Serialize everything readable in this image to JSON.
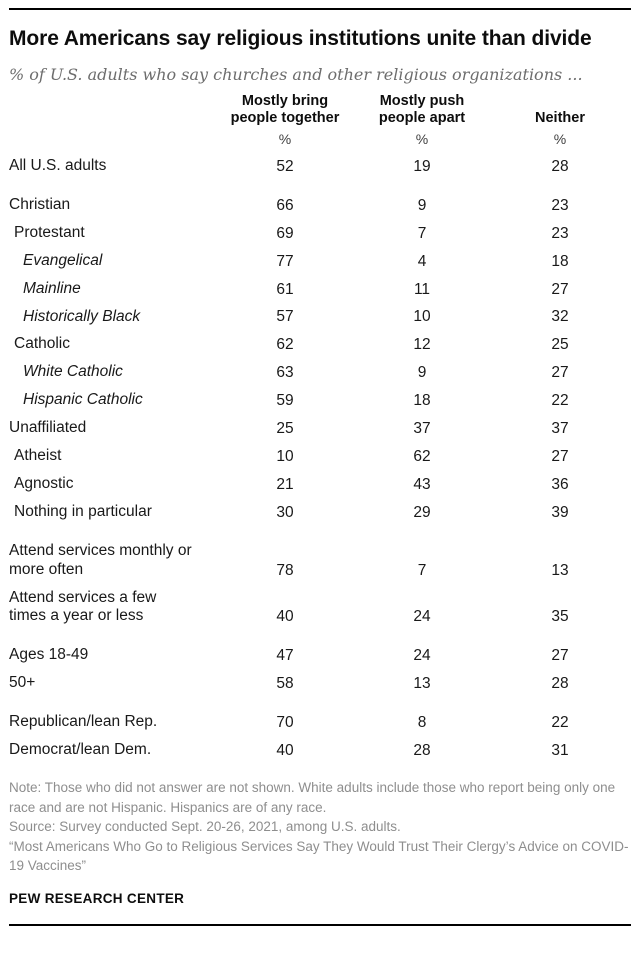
{
  "header": {
    "title": "More Americans say religious institutions unite than divide",
    "subtitle": "% of U.S. adults who say churches and other religious organizations ..."
  },
  "chart_data": {
    "type": "table",
    "title": "More Americans say religious institutions unite than divide",
    "subtitle": "% of U.S. adults who say churches and other religious organizations ...",
    "columns": [
      "Mostly bring people together",
      "Mostly push people apart",
      "Neither"
    ],
    "unit_label": "%",
    "rows": [
      {
        "label": "All U.S. adults",
        "indent": 0,
        "italic": false,
        "gap_before": false,
        "values": [
          52,
          19,
          28
        ]
      },
      {
        "label": "Christian",
        "indent": 0,
        "italic": false,
        "gap_before": true,
        "values": [
          66,
          9,
          23
        ]
      },
      {
        "label": "Protestant",
        "indent": 1,
        "italic": false,
        "gap_before": false,
        "values": [
          69,
          7,
          23
        ]
      },
      {
        "label": "Evangelical",
        "indent": 2,
        "italic": true,
        "gap_before": false,
        "values": [
          77,
          4,
          18
        ]
      },
      {
        "label": "Mainline",
        "indent": 2,
        "italic": true,
        "gap_before": false,
        "values": [
          61,
          11,
          27
        ]
      },
      {
        "label": "Historically Black",
        "indent": 2,
        "italic": true,
        "gap_before": false,
        "values": [
          57,
          10,
          32
        ]
      },
      {
        "label": "Catholic",
        "indent": 1,
        "italic": false,
        "gap_before": false,
        "values": [
          62,
          12,
          25
        ]
      },
      {
        "label": "White Catholic",
        "indent": 2,
        "italic": true,
        "gap_before": false,
        "values": [
          63,
          9,
          27
        ]
      },
      {
        "label": "Hispanic Catholic",
        "indent": 2,
        "italic": true,
        "gap_before": false,
        "values": [
          59,
          18,
          22
        ]
      },
      {
        "label": "Unaffiliated",
        "indent": 0,
        "italic": false,
        "gap_before": false,
        "values": [
          25,
          37,
          37
        ]
      },
      {
        "label": "Atheist",
        "indent": 1,
        "italic": false,
        "gap_before": false,
        "values": [
          10,
          62,
          27
        ]
      },
      {
        "label": "Agnostic",
        "indent": 1,
        "italic": false,
        "gap_before": false,
        "values": [
          21,
          43,
          36
        ]
      },
      {
        "label": "Nothing in particular",
        "indent": 1,
        "italic": false,
        "gap_before": false,
        "values": [
          30,
          29,
          39
        ]
      },
      {
        "label": "Attend services monthly or\nmore often",
        "indent": 0,
        "italic": false,
        "gap_before": true,
        "values": [
          78,
          7,
          13
        ]
      },
      {
        "label": "Attend services a few\ntimes a year or less",
        "indent": 0,
        "italic": false,
        "gap_before": false,
        "values": [
          40,
          24,
          35
        ]
      },
      {
        "label": "Ages 18-49",
        "indent": 0,
        "italic": false,
        "gap_before": true,
        "values": [
          47,
          24,
          27
        ]
      },
      {
        "label": "50+",
        "indent": 0,
        "italic": false,
        "gap_before": false,
        "values": [
          58,
          13,
          28
        ]
      },
      {
        "label": "Republican/lean Rep.",
        "indent": 0,
        "italic": false,
        "gap_before": true,
        "values": [
          70,
          8,
          22
        ]
      },
      {
        "label": "Democrat/lean Dem.",
        "indent": 0,
        "italic": false,
        "gap_before": false,
        "values": [
          40,
          28,
          31
        ]
      }
    ]
  },
  "footer": {
    "note": "Note: Those who did not answer are not shown. White adults include those who report being only one race and are not Hispanic. Hispanics are of any race.",
    "source": "Source: Survey conducted Sept. 20-26, 2021, among U.S. adults.",
    "report_title": "“Most Americans Who Go to Religious Services Say They Would Trust Their Clergy’s Advice on COVID-19 Vaccines”",
    "brand": "PEW RESEARCH CENTER"
  }
}
